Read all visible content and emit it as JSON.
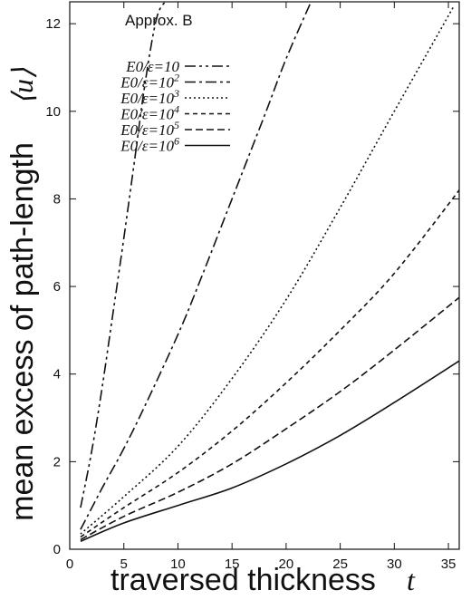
{
  "chart_data": {
    "type": "line",
    "annotation": "Approx. B",
    "xlabel": "traversed thickness",
    "xlabel_var": "t",
    "ylabel": "mean excess of path-length",
    "ylabel_var": "⟨u⟩",
    "xlim": [
      0,
      36
    ],
    "ylim": [
      0,
      12.5
    ],
    "xticks": [
      "0",
      "5",
      "10",
      "15",
      "20",
      "25",
      "30",
      "35"
    ],
    "yticks": [
      "0",
      "2",
      "4",
      "6",
      "8",
      "10",
      "12"
    ],
    "legend_position": "top-left",
    "grid": false,
    "series": [
      {
        "name": "E0/ε=10",
        "sup": "",
        "dash": "12,4,3,4,3,4",
        "x": [
          1,
          2,
          3,
          4,
          5,
          6,
          7,
          8,
          8.8
        ],
        "y": [
          0.95,
          2.2,
          3.7,
          5.4,
          7.1,
          8.9,
          10.7,
          12.1,
          12.5
        ]
      },
      {
        "name": "E0/ε=10",
        "sup": "2",
        "dash": "12,4,3,4",
        "x": [
          1,
          3,
          5,
          7,
          10,
          12,
          15,
          18,
          20,
          22.3
        ],
        "y": [
          0.45,
          1.4,
          2.3,
          3.3,
          4.9,
          6.1,
          8.0,
          9.9,
          11.2,
          12.5
        ]
      },
      {
        "name": "E0/ε=10",
        "sup": "3",
        "dash": "2,3",
        "x": [
          1,
          5,
          10,
          15,
          20,
          25,
          30,
          35.5
        ],
        "y": [
          0.35,
          1.2,
          2.35,
          3.9,
          5.7,
          7.8,
          10.0,
          12.4
        ]
      },
      {
        "name": "E0/ε=10",
        "sup": "4",
        "dash": "5,4",
        "x": [
          1,
          5,
          10,
          15,
          20,
          25,
          30,
          36
        ],
        "y": [
          0.28,
          0.95,
          1.75,
          2.7,
          3.8,
          5.0,
          6.3,
          8.2
        ]
      },
      {
        "name": "E0/ε=10",
        "sup": "5",
        "dash": "8,4",
        "x": [
          1,
          5,
          10,
          15,
          20,
          25,
          30,
          36
        ],
        "y": [
          0.22,
          0.75,
          1.3,
          1.95,
          2.75,
          3.6,
          4.55,
          5.75
        ]
      },
      {
        "name": "E0/ε=10",
        "sup": "6",
        "dash": "",
        "x": [
          1,
          5,
          10,
          15,
          20,
          25,
          30,
          36
        ],
        "y": [
          0.18,
          0.6,
          1.0,
          1.4,
          1.95,
          2.6,
          3.35,
          4.3
        ]
      }
    ]
  }
}
